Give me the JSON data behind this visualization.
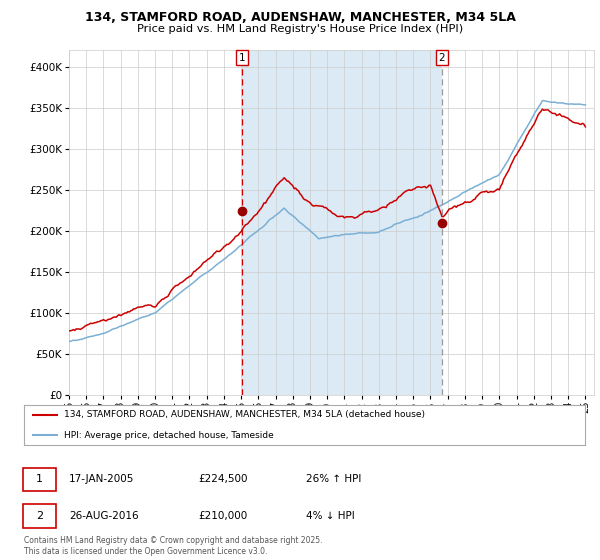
{
  "title_line1": "134, STAMFORD ROAD, AUDENSHAW, MANCHESTER, M34 5LA",
  "title_line2": "Price paid vs. HM Land Registry's House Price Index (HPI)",
  "legend_label_red": "134, STAMFORD ROAD, AUDENSHAW, MANCHESTER, M34 5LA (detached house)",
  "legend_label_blue": "HPI: Average price, detached house, Tameside",
  "annotation1_date": "17-JAN-2005",
  "annotation1_price": "£224,500",
  "annotation1_hpi": "26% ↑ HPI",
  "annotation2_date": "26-AUG-2016",
  "annotation2_price": "£210,000",
  "annotation2_hpi": "4% ↓ HPI",
  "footnote": "Contains HM Land Registry data © Crown copyright and database right 2025.\nThis data is licensed under the Open Government Licence v3.0.",
  "vline1_year": 2005.04,
  "vline2_year": 2016.65,
  "marker1_year": 2005.04,
  "marker1_value": 224500,
  "marker2_year": 2016.65,
  "marker2_value": 210000,
  "ylim": [
    0,
    420000
  ],
  "yticks": [
    0,
    50000,
    100000,
    150000,
    200000,
    250000,
    300000,
    350000,
    400000
  ],
  "color_red": "#cc0000",
  "color_blue": "#7BAFD4",
  "color_shaded": "#dceaf5",
  "bg_color": "#ffffff",
  "grid_color": "#cccccc",
  "title_fontsize": 9.0,
  "subtitle_fontsize": 8.2
}
